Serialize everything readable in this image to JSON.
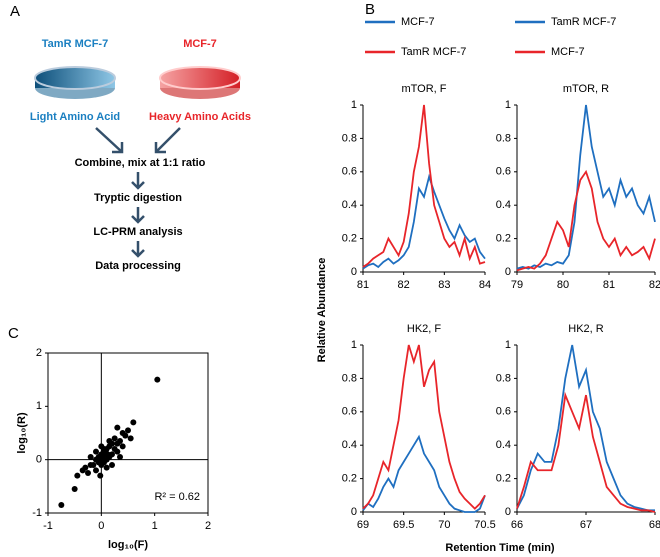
{
  "panel_labels": [
    "A",
    "B",
    "C"
  ],
  "workflow": {
    "left_label": "TamR MCF-7",
    "right_label": "MCF-7",
    "left_sub": "Light Amino Acid",
    "right_sub": "Heavy Amino Acids",
    "steps": [
      "Combine, mix at 1:1 ratio",
      "Tryptic digestion",
      "LC-PRM analysis",
      "Data processing"
    ]
  },
  "axis_labels": {
    "y": "Relative Abundance",
    "x": "Retention Time (min)"
  },
  "chart_data": [
    {
      "type": "line",
      "title": "mTOR, F",
      "x": [
        81,
        81.125,
        81.25,
        81.375,
        81.5,
        81.625,
        81.75,
        81.875,
        82,
        82.125,
        82.25,
        82.375,
        82.5,
        82.625,
        82.75,
        82.875,
        83,
        83.125,
        83.25,
        83.375,
        83.5,
        83.625,
        83.75,
        83.875,
        84
      ],
      "series": [
        {
          "name": "MCF-7",
          "color": "#1f6fc0",
          "values": [
            0.02,
            0.04,
            0.05,
            0.03,
            0.06,
            0.08,
            0.05,
            0.07,
            0.1,
            0.15,
            0.3,
            0.5,
            0.45,
            0.57,
            0.48,
            0.4,
            0.32,
            0.25,
            0.2,
            0.28,
            0.22,
            0.18,
            0.2,
            0.12,
            0.08
          ]
        },
        {
          "name": "TamR MCF-7",
          "color": "#e8252a",
          "values": [
            0.03,
            0.05,
            0.08,
            0.1,
            0.12,
            0.2,
            0.15,
            0.1,
            0.18,
            0.35,
            0.6,
            0.75,
            1.0,
            0.65,
            0.4,
            0.3,
            0.2,
            0.15,
            0.18,
            0.1,
            0.2,
            0.08,
            0.15,
            0.05,
            0.06
          ]
        }
      ],
      "xlim": [
        81,
        84
      ],
      "xticks": [
        81,
        82,
        83,
        84
      ],
      "ylim": [
        0,
        1
      ],
      "yticks": [
        0,
        0.2,
        0.4,
        0.6,
        0.8,
        1
      ]
    },
    {
      "type": "line",
      "title": "mTOR, R",
      "x": [
        79,
        79.125,
        79.25,
        79.375,
        79.5,
        79.625,
        79.75,
        79.875,
        80,
        80.125,
        80.25,
        80.375,
        80.5,
        80.625,
        80.75,
        80.875,
        81,
        81.125,
        81.25,
        81.375,
        81.5,
        81.625,
        81.75,
        81.875,
        82
      ],
      "series": [
        {
          "name": "TamR MCF-7",
          "color": "#1f6fc0",
          "values": [
            0.02,
            0.03,
            0.02,
            0.04,
            0.03,
            0.05,
            0.04,
            0.06,
            0.05,
            0.1,
            0.3,
            0.7,
            1.0,
            0.75,
            0.6,
            0.45,
            0.5,
            0.4,
            0.55,
            0.45,
            0.5,
            0.4,
            0.35,
            0.45,
            0.3
          ]
        },
        {
          "name": "MCF-7",
          "color": "#e8252a",
          "values": [
            0.01,
            0.02,
            0.03,
            0.02,
            0.05,
            0.1,
            0.2,
            0.3,
            0.25,
            0.15,
            0.4,
            0.55,
            0.6,
            0.5,
            0.3,
            0.2,
            0.15,
            0.2,
            0.1,
            0.15,
            0.1,
            0.12,
            0.15,
            0.08,
            0.2
          ]
        }
      ],
      "xlim": [
        79,
        82
      ],
      "xticks": [
        79,
        80,
        81,
        82
      ],
      "ylim": [
        0,
        1
      ],
      "yticks": [
        0,
        0.2,
        0.4,
        0.6,
        0.8,
        1
      ]
    },
    {
      "type": "line",
      "title": "HK2, F",
      "x": [
        69,
        69.0625,
        69.125,
        69.1875,
        69.25,
        69.3125,
        69.375,
        69.4375,
        69.5,
        69.5625,
        69.625,
        69.6875,
        69.75,
        69.8125,
        69.875,
        69.9375,
        70,
        70.0625,
        70.125,
        70.1875,
        70.25,
        70.3125,
        70.375,
        70.4375,
        70.5
      ],
      "series": [
        {
          "color": "#1f6fc0",
          "values": [
            0.01,
            0.05,
            0.03,
            0.08,
            0.15,
            0.2,
            0.15,
            0.25,
            0.3,
            0.35,
            0.4,
            0.45,
            0.35,
            0.3,
            0.25,
            0.15,
            0.1,
            0.05,
            0.02,
            0.01,
            0,
            0,
            0,
            0.02,
            0.1
          ]
        },
        {
          "color": "#e8252a",
          "values": [
            0.02,
            0.05,
            0.1,
            0.2,
            0.3,
            0.25,
            0.4,
            0.55,
            0.8,
            1.0,
            0.9,
            1.0,
            0.75,
            0.85,
            0.9,
            0.6,
            0.45,
            0.3,
            0.2,
            0.12,
            0.08,
            0.05,
            0.02,
            0.05,
            0.1
          ]
        }
      ],
      "xlim": [
        69,
        70.5
      ],
      "xticks": [
        69,
        69.5,
        70,
        70.5
      ],
      "ylim": [
        0,
        1
      ],
      "yticks": [
        0,
        0.2,
        0.4,
        0.6,
        0.8,
        1
      ]
    },
    {
      "type": "line",
      "title": "HK2, R",
      "x": [
        66,
        66.1,
        66.2,
        66.3,
        66.4,
        66.5,
        66.6,
        66.7,
        66.8,
        66.9,
        67,
        67.1,
        67.2,
        67.3,
        67.4,
        67.5,
        67.6,
        67.7,
        67.8,
        67.9,
        68
      ],
      "series": [
        {
          "color": "#1f6fc0",
          "values": [
            0.02,
            0.1,
            0.25,
            0.35,
            0.3,
            0.3,
            0.5,
            0.8,
            1.0,
            0.75,
            0.85,
            0.6,
            0.5,
            0.3,
            0.2,
            0.1,
            0.05,
            0.03,
            0.02,
            0.01,
            0.01
          ]
        },
        {
          "color": "#e8252a",
          "values": [
            0.02,
            0.15,
            0.3,
            0.25,
            0.25,
            0.25,
            0.4,
            0.7,
            0.6,
            0.5,
            0.7,
            0.45,
            0.3,
            0.15,
            0.1,
            0.05,
            0.03,
            0.02,
            0.01,
            0.01,
            0
          ]
        }
      ],
      "xlim": [
        66,
        68
      ],
      "xticks": [
        66,
        67,
        68
      ],
      "ylim": [
        0,
        1
      ],
      "yticks": [
        0,
        0.2,
        0.4,
        0.6,
        0.8,
        1
      ]
    },
    {
      "type": "scatter",
      "x_label": "log₁₀(F)",
      "y_label": "log₁₀(R)",
      "annotation": "R² = 0.62",
      "color": "#000000",
      "x": [
        -0.75,
        -0.5,
        -0.45,
        -0.35,
        -0.3,
        -0.25,
        -0.2,
        -0.2,
        -0.15,
        -0.1,
        -0.1,
        -0.05,
        -0.05,
        0,
        0,
        0,
        0.02,
        0.05,
        0.05,
        0.08,
        0.1,
        0.1,
        0.12,
        0.15,
        0.15,
        0.2,
        0.2,
        0.25,
        0.25,
        0.3,
        0.3,
        0.35,
        0.4,
        0.4,
        0.45,
        0.5,
        0.55,
        0.6,
        0.1,
        0,
        -0.1,
        0.2,
        0.3,
        1.05,
        0.05,
        -0.02,
        0.15,
        0.35
      ],
      "values": [
        -0.85,
        -0.55,
        -0.3,
        -0.2,
        -0.15,
        -0.25,
        -0.1,
        0.05,
        -0.1,
        0,
        -0.2,
        0.05,
        -0.05,
        0,
        0.1,
        -0.1,
        0.05,
        0.15,
        -0.05,
        0.1,
        0,
        0.2,
        0.1,
        0.05,
        0.25,
        0.1,
        0.3,
        0.2,
        0.4,
        0.3,
        0.15,
        0.35,
        0.5,
        0.25,
        0.45,
        0.55,
        0.4,
        0.7,
        -0.15,
        0.25,
        0.15,
        -0.1,
        0.6,
        1.5,
        0.2,
        -0.3,
        0.35,
        0.05
      ],
      "xlim": [
        -1,
        2
      ],
      "xticks": [
        -1,
        0,
        1,
        2
      ],
      "ylim": [
        -1,
        2
      ],
      "yticks": [
        -1,
        0,
        1,
        2
      ]
    }
  ]
}
